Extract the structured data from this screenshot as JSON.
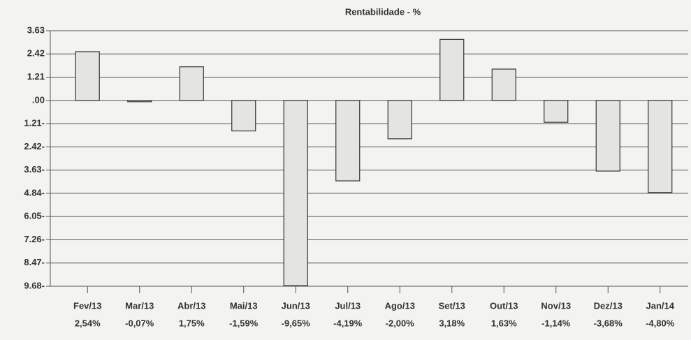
{
  "chart_data": {
    "type": "bar",
    "title": "Rentabilidade - %",
    "categories": [
      "Fev/13",
      "Mar/13",
      "Abr/13",
      "Mai/13",
      "Jun/13",
      "Jul/13",
      "Ago/13",
      "Set/13",
      "Out/13",
      "Nov/13",
      "Dez/13",
      "Jan/14"
    ],
    "values": [
      2.54,
      -0.07,
      1.75,
      -1.59,
      -9.65,
      -4.19,
      -2.0,
      3.18,
      1.63,
      -1.14,
      -3.68,
      -4.8
    ],
    "value_labels": [
      "2,54%",
      "-0,07%",
      "1,75%",
      "-1,59%",
      "-9,65%",
      "-4,19%",
      "-2,00%",
      "3,18%",
      "1,63%",
      "-1,14%",
      "-3,68%",
      "-4,80%"
    ],
    "color": "#e4e4e2",
    "ylim": [
      -9.68,
      3.63
    ],
    "yticks": [
      3.63,
      2.42,
      1.21,
      {
        "value": 0,
        "label": ".00"
      },
      {
        "value": -1.21,
        "label": "1.21-"
      },
      {
        "value": -2.42,
        "label": "2.42-"
      },
      {
        "value": -3.63,
        "label": "3.63-"
      },
      {
        "value": -4.84,
        "label": "4.84-"
      },
      {
        "value": -6.05,
        "label": "6.05-"
      },
      {
        "value": -7.26,
        "label": "7.26-"
      },
      {
        "value": -8.47,
        "label": "8.47-"
      },
      {
        "value": -9.68,
        "label": "9.68-"
      }
    ],
    "grid": true
  }
}
